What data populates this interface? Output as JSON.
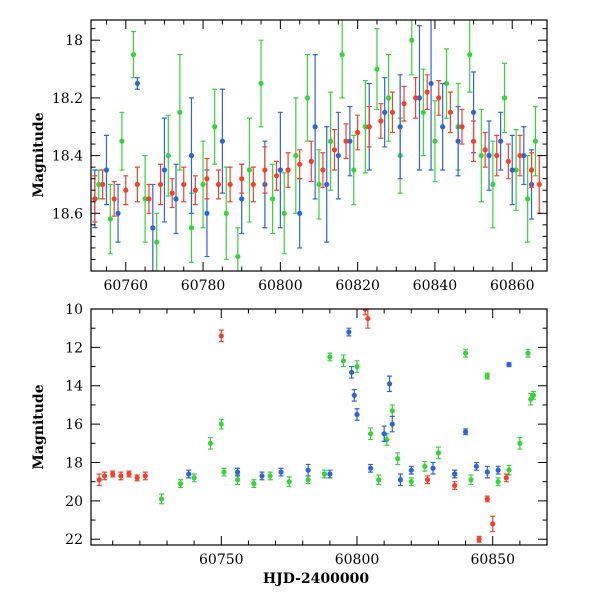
{
  "chart_data": [
    {
      "type": "scatter",
      "panel": "top",
      "title": "",
      "xlabel": "",
      "ylabel": "Magnitude",
      "xlim": [
        60751,
        60869
      ],
      "ylim": [
        18.8,
        17.93
      ],
      "y_inverted": true,
      "xticks": [
        60760,
        60780,
        60800,
        60820,
        60840,
        60860
      ],
      "yticks": [
        18.0,
        18.2,
        18.4,
        18.6
      ],
      "ytick_labels": [
        "18",
        "18.2",
        "18.4",
        "18.6"
      ],
      "grid": false,
      "legend": "none",
      "series": [
        {
          "color": "#3ad23a",
          "x": [
            60753,
            60756,
            60759,
            60762,
            60765,
            60768,
            60771,
            60774,
            60777,
            60780,
            60783,
            60786,
            60789,
            60792,
            60795,
            60798,
            60801,
            60804,
            60807,
            60810,
            60813,
            60816,
            60819,
            60822,
            60825,
            60828,
            60831,
            60834,
            60837,
            60840,
            60843,
            60846,
            60849,
            60852,
            60855,
            60858,
            60861,
            60864,
            60866
          ],
          "y": [
            18.5,
            18.62,
            18.35,
            18.05,
            18.55,
            18.7,
            18.4,
            18.25,
            18.65,
            18.5,
            18.3,
            18.6,
            18.75,
            18.45,
            18.15,
            18.55,
            18.6,
            18.4,
            18.2,
            18.5,
            18.35,
            18.05,
            18.45,
            18.3,
            18.1,
            18.2,
            18.4,
            18.0,
            18.25,
            18.35,
            18.15,
            18.3,
            18.05,
            18.4,
            18.5,
            18.2,
            18.45,
            18.55,
            18.35
          ],
          "err": [
            0.05,
            0.12,
            0.1,
            0.08,
            0.15,
            0.1,
            0.14,
            0.2,
            0.12,
            0.15,
            0.13,
            0.16,
            0.1,
            0.18,
            0.15,
            0.12,
            0.14,
            0.2,
            0.15,
            0.12,
            0.17,
            0.15,
            0.12,
            0.16,
            0.14,
            0.15,
            0.13,
            0.12,
            0.15,
            0.14,
            0.12,
            0.15,
            0.13,
            0.16,
            0.15,
            0.12,
            0.14,
            0.15,
            0.12
          ]
        },
        {
          "color": "#2f63d8",
          "x": [
            60752,
            60755,
            60758,
            60763,
            60767,
            60770,
            60773,
            60777,
            60781,
            60785,
            60790,
            60796,
            60800,
            60805,
            60809,
            60812,
            60815,
            60818,
            60823,
            60827,
            60831,
            60836,
            60839,
            60842,
            60846,
            60850,
            60854,
            60857,
            60860,
            60863,
            60865
          ],
          "y": [
            18.55,
            18.45,
            18.6,
            18.15,
            18.65,
            18.45,
            18.55,
            18.4,
            18.6,
            18.35,
            18.55,
            18.5,
            18.45,
            18.6,
            18.3,
            18.5,
            18.4,
            18.35,
            18.3,
            18.25,
            18.3,
            18.2,
            18.15,
            18.3,
            18.35,
            18.25,
            18.4,
            18.35,
            18.45,
            18.4,
            18.5
          ],
          "err": [
            0.1,
            0.12,
            0.1,
            0.02,
            0.15,
            0.18,
            0.12,
            0.2,
            0.15,
            0.18,
            0.12,
            0.15,
            0.2,
            0.12,
            0.25,
            0.2,
            0.15,
            0.12,
            0.15,
            0.12,
            0.18,
            0.25,
            0.3,
            0.15,
            0.12,
            0.14,
            0.12,
            0.1,
            0.12,
            0.1,
            0.12
          ]
        },
        {
          "color": "#f2412c",
          "x": [
            60752,
            60754,
            60757,
            60760,
            60763,
            60766,
            60769,
            60772,
            60775,
            60778,
            60781,
            60784,
            60787,
            60790,
            60793,
            60796,
            60799,
            60802,
            60805,
            60808,
            60811,
            60814,
            60817,
            60820,
            60823,
            60826,
            60829,
            60832,
            60835,
            60838,
            60841,
            60844,
            60847,
            60850,
            60853,
            60856,
            60859,
            60862,
            60865,
            60867
          ],
          "y": [
            18.55,
            18.5,
            18.55,
            18.52,
            18.5,
            18.55,
            18.5,
            18.53,
            18.5,
            18.52,
            18.48,
            18.5,
            18.5,
            18.48,
            18.5,
            18.45,
            18.47,
            18.45,
            18.43,
            18.42,
            18.45,
            18.38,
            18.35,
            18.32,
            18.3,
            18.28,
            18.25,
            18.22,
            18.2,
            18.18,
            18.2,
            18.25,
            18.3,
            18.35,
            18.38,
            18.4,
            18.42,
            18.4,
            18.45,
            18.5
          ],
          "err": [
            0.08,
            0.05,
            0.06,
            0.05,
            0.06,
            0.05,
            0.07,
            0.05,
            0.06,
            0.05,
            0.07,
            0.05,
            0.06,
            0.05,
            0.06,
            0.08,
            0.05,
            0.06,
            0.05,
            0.07,
            0.06,
            0.07,
            0.06,
            0.06,
            0.07,
            0.06,
            0.07,
            0.06,
            0.07,
            0.06,
            0.06,
            0.07,
            0.06,
            0.07,
            0.06,
            0.07,
            0.06,
            0.07,
            0.06,
            0.1
          ]
        }
      ]
    },
    {
      "type": "scatter",
      "panel": "bottom",
      "title": "",
      "xlabel": "HJD-2400000",
      "ylabel": "Magnitude",
      "xlim": [
        60702,
        60870
      ],
      "ylim": [
        22.3,
        10.0
      ],
      "y_inverted": true,
      "xticks": [
        60750,
        60800,
        60850
      ],
      "yticks": [
        10,
        12,
        14,
        16,
        18,
        20,
        22
      ],
      "ytick_labels": [
        "10",
        "12",
        "14",
        "16",
        "18",
        "20",
        "22"
      ],
      "grid": false,
      "legend": "none",
      "series": [
        {
          "color": "#3ad23a",
          "x": [
            60728,
            60735,
            60740,
            60746,
            60750,
            60751,
            60756,
            60762,
            60768,
            60775,
            60782,
            60788,
            60790,
            60795,
            60800,
            60805,
            60808,
            60811,
            60813,
            60815,
            60820,
            60825,
            60830,
            60836,
            60840,
            60842,
            60848,
            60852,
            60856,
            60860,
            60863,
            60864,
            60865
          ],
          "y": [
            19.9,
            19.1,
            18.8,
            17.0,
            16.0,
            18.5,
            18.9,
            19.1,
            18.7,
            19.0,
            18.9,
            18.6,
            12.5,
            12.7,
            13.0,
            16.5,
            18.9,
            16.8,
            15.3,
            17.8,
            19.0,
            18.2,
            17.5,
            18.6,
            12.3,
            18.9,
            13.5,
            19.0,
            18.4,
            17.0,
            12.3,
            14.7,
            14.5
          ],
          "err": [
            0.25,
            0.2,
            0.2,
            0.3,
            0.25,
            0.2,
            0.25,
            0.2,
            0.2,
            0.25,
            0.2,
            0.2,
            0.2,
            0.3,
            0.3,
            0.3,
            0.25,
            0.3,
            0.3,
            0.3,
            0.2,
            0.25,
            0.3,
            0.2,
            0.2,
            0.25,
            0.15,
            0.2,
            0.25,
            0.3,
            0.2,
            0.3,
            0.2
          ]
        },
        {
          "color": "#2f63d8",
          "x": [
            60738,
            60756,
            60765,
            60772,
            60782,
            60790,
            60797,
            60798,
            60799,
            60800,
            60805,
            60810,
            60812,
            60813,
            60816,
            60820,
            60828,
            60836,
            60840,
            60844,
            60848,
            60852,
            60856
          ],
          "y": [
            18.6,
            18.5,
            18.7,
            18.5,
            18.4,
            18.6,
            11.2,
            13.3,
            14.5,
            15.5,
            18.3,
            16.5,
            13.9,
            16.0,
            18.9,
            18.4,
            18.3,
            18.6,
            16.4,
            18.2,
            18.5,
            18.4,
            12.9
          ],
          "err": [
            0.2,
            0.2,
            0.2,
            0.2,
            0.3,
            0.2,
            0.2,
            0.3,
            0.3,
            0.3,
            0.2,
            0.4,
            0.4,
            0.4,
            0.3,
            0.2,
            0.3,
            0.2,
            0.15,
            0.2,
            0.3,
            0.2,
            0.1
          ]
        },
        {
          "color": "#f2412c",
          "x": [
            60705,
            60707,
            60710,
            60713,
            60716,
            60719,
            60722,
            60750,
            60803,
            60804,
            60826,
            60836,
            60845,
            60848,
            60850,
            60855
          ],
          "y": [
            18.9,
            18.7,
            18.6,
            18.7,
            18.6,
            18.8,
            18.7,
            11.4,
            10.0,
            10.5,
            18.9,
            19.2,
            22.0,
            19.9,
            21.2,
            18.8
          ],
          "err": [
            0.3,
            0.2,
            0.15,
            0.2,
            0.15,
            0.15,
            0.2,
            0.3,
            0.3,
            0.5,
            0.2,
            0.2,
            0.15,
            0.15,
            0.4,
            0.2
          ]
        }
      ]
    }
  ]
}
